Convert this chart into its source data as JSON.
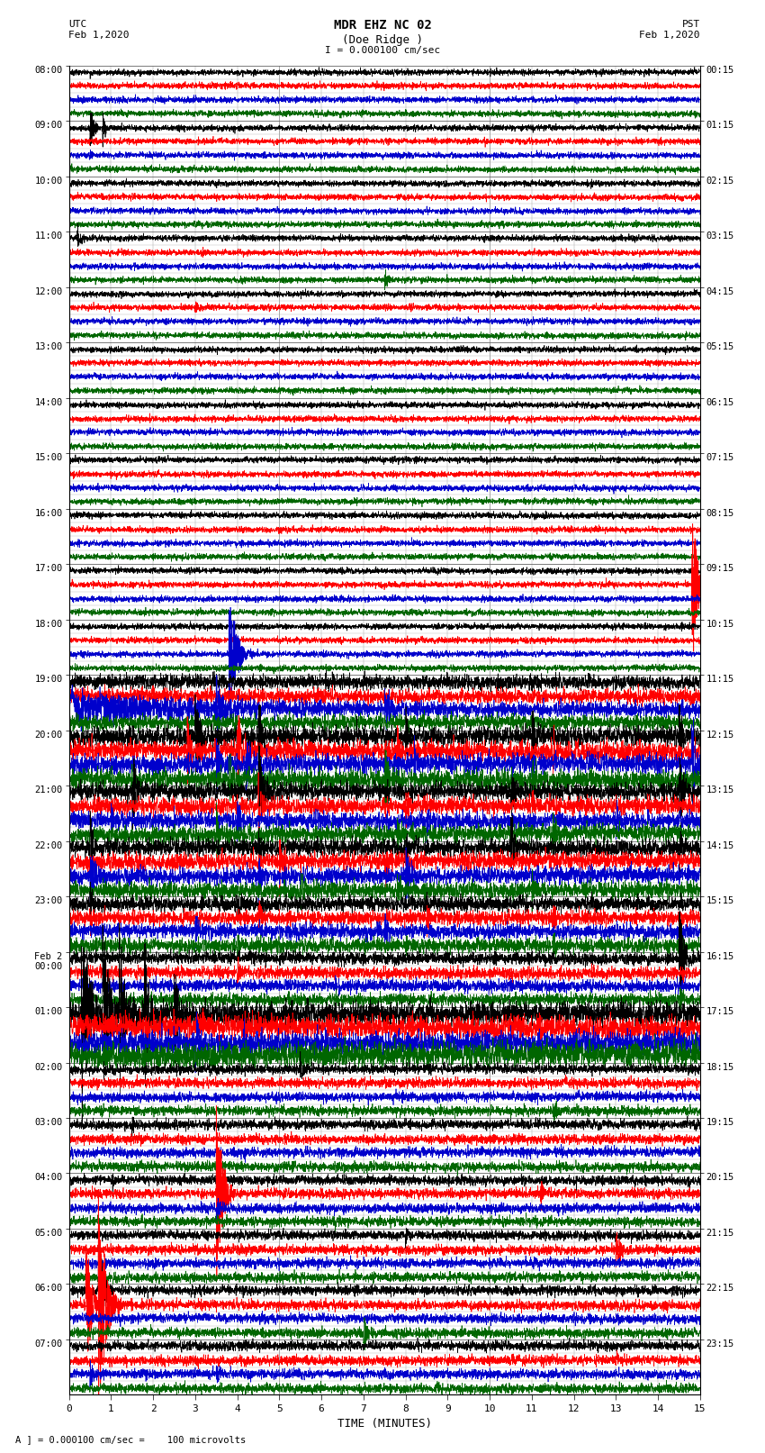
{
  "title_line1": "MDR EHZ NC 02",
  "title_line2": "(Doe Ridge )",
  "scale_text": "I = 0.000100 cm/sec",
  "bottom_scale_text": "A ] = 0.000100 cm/sec =    100 microvolts",
  "utc_label": "UTC",
  "utc_date": "Feb 1,2020",
  "pst_label": "PST",
  "pst_date": "Feb 1,2020",
  "xlabel": "TIME (MINUTES)",
  "xmin": 0,
  "xmax": 15,
  "xticks": [
    0,
    1,
    2,
    3,
    4,
    5,
    6,
    7,
    8,
    9,
    10,
    11,
    12,
    13,
    14,
    15
  ],
  "background_color": "#ffffff",
  "trace_colors": [
    "#000000",
    "#ff0000",
    "#0000cc",
    "#006600"
  ],
  "utc_times": [
    "08:00",
    "09:00",
    "10:00",
    "11:00",
    "12:00",
    "13:00",
    "14:00",
    "15:00",
    "16:00",
    "17:00",
    "18:00",
    "19:00",
    "20:00",
    "21:00",
    "22:00",
    "23:00",
    "Feb 2\n00:00",
    "01:00",
    "02:00",
    "03:00",
    "04:00",
    "05:00",
    "06:00",
    "07:00"
  ],
  "pst_times": [
    "00:15",
    "01:15",
    "02:15",
    "03:15",
    "04:15",
    "05:15",
    "06:15",
    "07:15",
    "08:15",
    "09:15",
    "10:15",
    "11:15",
    "12:15",
    "13:15",
    "14:15",
    "15:15",
    "16:15",
    "17:15",
    "18:15",
    "19:15",
    "20:15",
    "21:15",
    "22:15",
    "23:15"
  ],
  "grid_color": "#999999",
  "n_hours": 24,
  "rows_per_hour": 4,
  "minutes": 15.0,
  "samples_per_row": 4000
}
